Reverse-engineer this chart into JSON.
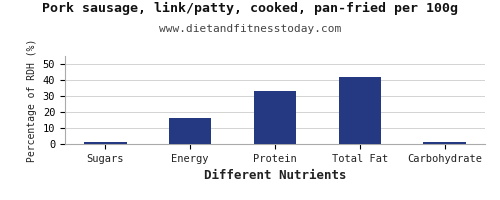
{
  "title": "Pork sausage, link/patty, cooked, pan-fried per 100g",
  "subtitle": "www.dietandfitnesstoday.com",
  "xlabel": "Different Nutrients",
  "ylabel": "Percentage of RDH (%)",
  "categories": [
    "Sugars",
    "Energy",
    "Protein",
    "Total Fat",
    "Carbohydrate"
  ],
  "values": [
    1,
    16,
    33,
    42,
    1
  ],
  "bar_color": "#253882",
  "ylim": [
    0,
    55
  ],
  "yticks": [
    0,
    10,
    20,
    30,
    40,
    50
  ],
  "background_color": "#ffffff",
  "title_fontsize": 9.5,
  "subtitle_fontsize": 8,
  "xlabel_fontsize": 9,
  "ylabel_fontsize": 7,
  "tick_fontsize": 7.5
}
